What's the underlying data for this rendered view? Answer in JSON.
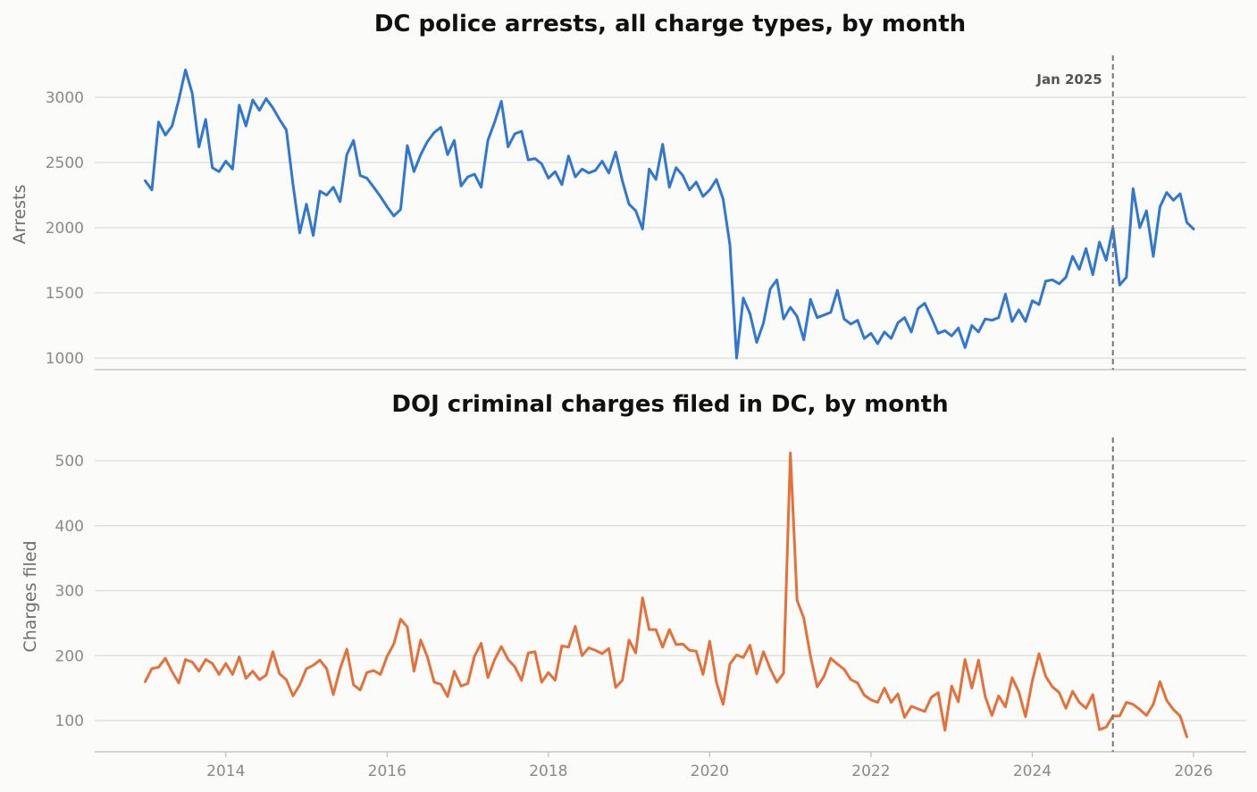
{
  "chart_data": [
    {
      "type": "line",
      "title": "DC police arrests, all charge types, by month",
      "ylabel": "Arrests",
      "xlabel": "",
      "ylim": [
        900,
        3300
      ],
      "yticks": [
        1000,
        1500,
        2000,
        2500,
        3000
      ],
      "grid": true,
      "start": "2013-01",
      "series": [
        {
          "color": "#2f77d0",
          "values": [
            2360,
            2290,
            2810,
            2710,
            2780,
            2980,
            3210,
            3030,
            2620,
            2830,
            2460,
            2430,
            2510,
            2450,
            2940,
            2780,
            2980,
            2900,
            2990,
            2920,
            2830,
            2750,
            2330,
            1960,
            2180,
            1940,
            2280,
            2250,
            2310,
            2200,
            2560,
            2670,
            2400,
            2380,
            2310,
            2240,
            2160,
            2090,
            2140,
            2630,
            2430,
            2560,
            2660,
            2730,
            2770,
            2560,
            2670,
            2320,
            2390,
            2410,
            2310,
            2670,
            2810,
            2970,
            2620,
            2720,
            2740,
            2520,
            2530,
            2490,
            2380,
            2430,
            2330,
            2550,
            2390,
            2450,
            2420,
            2440,
            2510,
            2420,
            2580,
            2360,
            2180,
            2130,
            1990,
            2450,
            2370,
            2640,
            2310,
            2460,
            2400,
            2290,
            2350,
            2240,
            2290,
            2370,
            2220,
            1870,
            1000,
            1460,
            1340,
            1120,
            1270,
            1530,
            1600,
            1300,
            1390,
            1320,
            1140,
            1450,
            1310,
            1330,
            1350,
            1520,
            1300,
            1260,
            1290,
            1150,
            1190,
            1110,
            1200,
            1150,
            1270,
            1310,
            1200,
            1380,
            1420,
            1310,
            1190,
            1210,
            1170,
            1230,
            1080,
            1250,
            1200,
            1300,
            1290,
            1310,
            1490,
            1280,
            1370,
            1280,
            1440,
            1410,
            1590,
            1600,
            1570,
            1620,
            1780,
            1680,
            1840,
            1640,
            1890,
            1750,
            2000,
            1560,
            1620,
            2300,
            2000,
            2130,
            1780,
            2160,
            2270,
            2210,
            2260,
            2040,
            1990
          ]
        }
      ],
      "annotation": {
        "date": "2025-01",
        "label": "Jan 2025"
      }
    },
    {
      "type": "line",
      "title": "DOJ criminal charges filed in DC, by month",
      "ylabel": "Charges filed",
      "xlabel": "",
      "ylim": [
        50,
        540
      ],
      "yticks": [
        100,
        200,
        300,
        400,
        500
      ],
      "grid": true,
      "start": "2013-01",
      "xticks": [
        "2014",
        "2016",
        "2018",
        "2020",
        "2022",
        "2024",
        "2026"
      ],
      "series": [
        {
          "color": "#e4703a",
          "values": [
            160,
            180,
            182,
            196,
            175,
            158,
            194,
            190,
            176,
            194,
            188,
            171,
            188,
            171,
            198,
            165,
            176,
            163,
            170,
            206,
            172,
            163,
            138,
            155,
            180,
            185,
            193,
            180,
            140,
            180,
            210,
            155,
            147,
            174,
            177,
            171,
            199,
            218,
            256,
            244,
            176,
            224,
            198,
            159,
            156,
            137,
            176,
            153,
            157,
            199,
            219,
            166,
            194,
            214,
            194,
            183,
            162,
            204,
            206,
            159,
            174,
            162,
            215,
            213,
            245,
            200,
            212,
            208,
            203,
            211,
            151,
            162,
            224,
            204,
            289,
            240,
            240,
            213,
            240,
            217,
            218,
            208,
            207,
            171,
            222,
            159,
            125,
            187,
            201,
            197,
            216,
            172,
            206,
            180,
            159,
            173,
            512,
            285,
            258,
            199,
            152,
            168,
            196,
            187,
            179,
            163,
            158,
            139,
            132,
            128,
            150,
            128,
            141,
            105,
            122,
            118,
            114,
            136,
            143,
            85,
            153,
            129,
            194,
            150,
            193,
            137,
            108,
            138,
            121,
            166,
            144,
            106,
            161,
            203,
            168,
            152,
            143,
            119,
            145,
            128,
            119,
            140,
            86,
            90,
            107,
            107,
            128,
            125,
            117,
            108,
            125,
            160,
            131,
            117,
            107,
            75
          ]
        }
      ],
      "annotation": {
        "date": "2025-01",
        "label": ""
      }
    }
  ]
}
